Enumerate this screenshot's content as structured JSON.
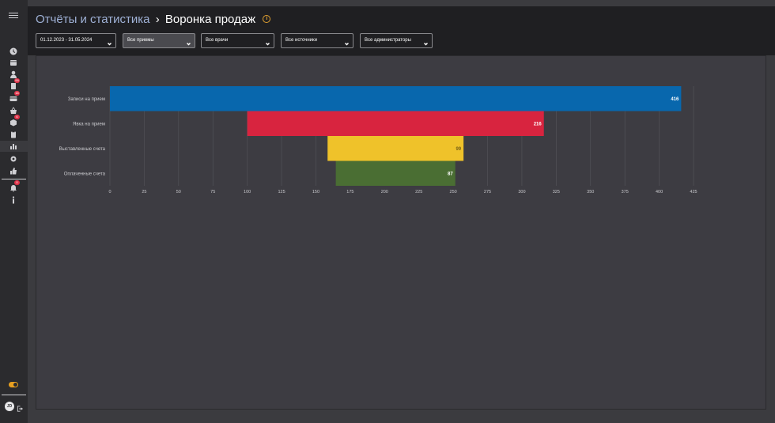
{
  "header": {
    "breadcrumb": "Отчёты и статистика",
    "separator": "›",
    "title": "Воронка продаж",
    "info_icon": "info-circle-icon"
  },
  "filters": {
    "date_range": "01.12.2023 - 31.05.2024",
    "appointments": "Все приемы",
    "doctors": "Все врачи",
    "sources": "Все источники",
    "administrators": "Все администраторы"
  },
  "sidebar": {
    "menu_icon": "hamburger-icon",
    "items": [
      {
        "icon": "clock-icon"
      },
      {
        "icon": "calendar-icon"
      },
      {
        "icon": "user-icon"
      },
      {
        "icon": "document-icon",
        "badge": "99"
      },
      {
        "icon": "card-icon",
        "badge": "16"
      },
      {
        "icon": "basket-icon"
      },
      {
        "icon": "box-icon",
        "badge": "6"
      },
      {
        "icon": "clipboard-icon"
      },
      {
        "icon": "bar-chart-icon",
        "active": true
      },
      {
        "icon": "gear-icon"
      },
      {
        "icon": "thumb-icon"
      },
      {
        "icon": "bell-icon",
        "badge": "0"
      },
      {
        "icon": "info-icon"
      }
    ],
    "avatar_initials": "JD"
  },
  "chart_data": {
    "type": "funnel",
    "categories": [
      "Записи на прием",
      "Явка на прием",
      "Выставленные счета",
      "Оплаченные счета"
    ],
    "values": [
      416,
      216,
      99,
      87
    ],
    "colors": [
      "#0867ad",
      "#d8243f",
      "#efc22a",
      "#4a6e33"
    ],
    "value_label_colors": [
      "#ffffff",
      "#ffffff",
      "#7a6218",
      "#ffffff"
    ],
    "xlim": [
      0,
      425
    ],
    "xticks": [
      0,
      25,
      50,
      75,
      100,
      125,
      150,
      175,
      200,
      225,
      250,
      275,
      300,
      325,
      350,
      375,
      400,
      425
    ],
    "grid": true
  }
}
